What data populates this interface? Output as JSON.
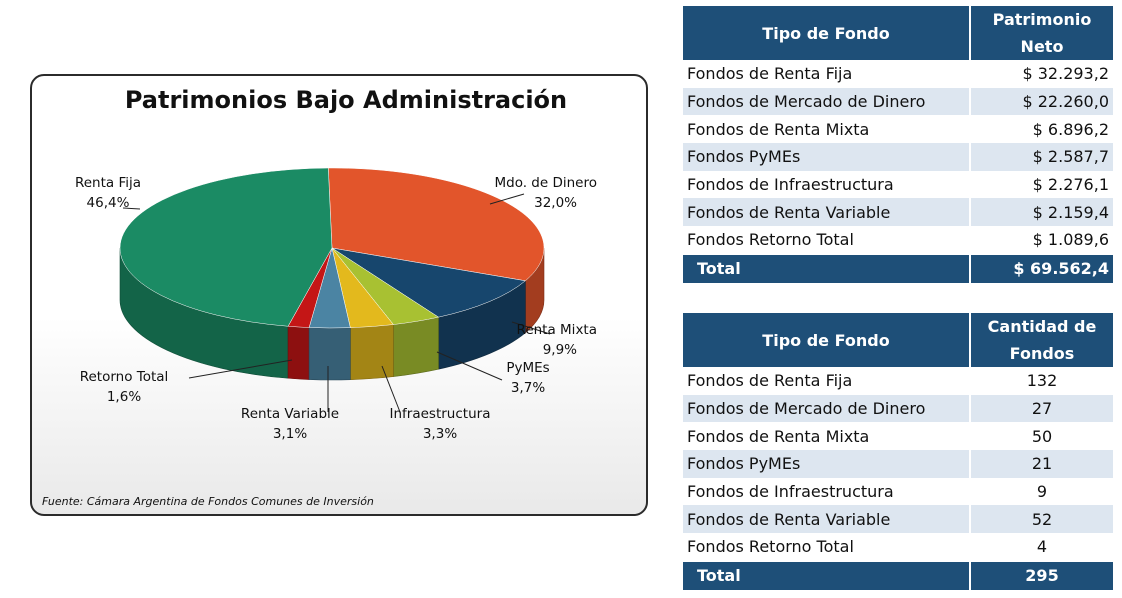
{
  "chart_data": {
    "type": "pie",
    "title": "Patrimonios Bajo Administración",
    "source": "Fuente:  Cámara Argentina de Fondos Comunes de Inversión",
    "slices": [
      {
        "label": "Mdo. de Dinero",
        "percent_text": "32,0%",
        "value": 32.0,
        "color": "#e2552b"
      },
      {
        "label": "Renta Mixta",
        "percent_text": "9,9%",
        "value": 9.9,
        "color": "#17466d"
      },
      {
        "label": "PyMEs",
        "percent_text": "3,7%",
        "value": 3.7,
        "color": "#a8c132"
      },
      {
        "label": "Infraestructura",
        "percent_text": "3,3%",
        "value": 3.3,
        "color": "#e3b91d"
      },
      {
        "label": "Renta Variable",
        "percent_text": "3,1%",
        "value": 3.1,
        "color": "#4b84a3"
      },
      {
        "label": "Retorno Total",
        "percent_text": "1,6%",
        "value": 1.6,
        "color": "#c41616"
      },
      {
        "label": "Renta Fija",
        "percent_text": "46,4%",
        "value": 46.4,
        "color": "#1b8b64"
      }
    ]
  },
  "table_patrimonio": {
    "headers": [
      "Tipo de Fondo",
      "Patrimonio Neto"
    ],
    "rows": [
      [
        "Fondos de Renta Fija",
        "$ 32.293,2"
      ],
      [
        "Fondos de Mercado de Dinero",
        "$ 22.260,0"
      ],
      [
        "Fondos de Renta Mixta",
        "$ 6.896,2"
      ],
      [
        "Fondos PyMEs",
        "$ 2.587,7"
      ],
      [
        "Fondos de Infraestructura",
        "$ 2.276,1"
      ],
      [
        "Fondos de Renta Variable",
        "$ 2.159,4"
      ],
      [
        "Fondos Retorno Total",
        "$ 1.089,6"
      ]
    ],
    "total": [
      "Total",
      "$ 69.562,4"
    ]
  },
  "table_cantidad": {
    "headers": [
      "Tipo de Fondo",
      "Cantidad de Fondos"
    ],
    "rows": [
      [
        "Fondos de Renta Fija",
        "132"
      ],
      [
        "Fondos de Mercado de Dinero",
        "27"
      ],
      [
        "Fondos de Renta Mixta",
        "50"
      ],
      [
        "Fondos PyMEs",
        "21"
      ],
      [
        "Fondos de Infraestructura",
        "9"
      ],
      [
        "Fondos de Renta Variable",
        "52"
      ],
      [
        "Fondos Retorno Total",
        "4"
      ]
    ],
    "total": [
      "Total",
      "295"
    ]
  }
}
